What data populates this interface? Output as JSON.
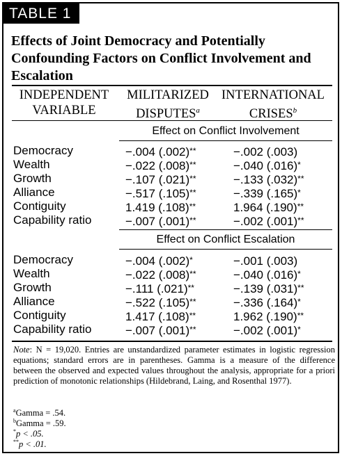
{
  "table_tag": "TABLE 1",
  "title": "Effects of Joint Democracy and Potentially Confounding Factors on Conflict Involvement and Escalation",
  "headers": {
    "col0_line1": "INDEPENDENT",
    "col0_line2": "VARIABLE",
    "col1_line1": "MILITARIZED",
    "col1_line2": "DISPUTES",
    "col1_mark": "a",
    "col2_line1": "INTERNATIONAL",
    "col2_line2": "CRISES",
    "col2_mark": "b"
  },
  "sections": [
    {
      "heading": "Effect on Conflict Involvement",
      "rows": [
        {
          "label": "Democracy",
          "disputes": "−.004 (.002)",
          "disputes_sig": "**",
          "crises": "−.002 (.003)",
          "crises_sig": ""
        },
        {
          "label": "Wealth",
          "disputes": "−.022 (.008)",
          "disputes_sig": "**",
          "crises": "−.040 (.016)",
          "crises_sig": "*"
        },
        {
          "label": "Growth",
          "disputes": "−.107 (.021)",
          "disputes_sig": "**",
          "crises": "−.133 (.032)",
          "crises_sig": "**"
        },
        {
          "label": "Alliance",
          "disputes": "−.517 (.105)",
          "disputes_sig": "**",
          "crises": "−.339 (.165)",
          "crises_sig": "*"
        },
        {
          "label": "Contiguity",
          "disputes": "1.419 (.108)",
          "disputes_sig": "**",
          "crises": "1.964 (.190)",
          "crises_sig": "**"
        },
        {
          "label": "Capability ratio",
          "disputes": "−.007 (.001)",
          "disputes_sig": "**",
          "crises": "−.002 (.001)",
          "crises_sig": "**"
        }
      ]
    },
    {
      "heading": "Effect on Conflict Escalation",
      "rows": [
        {
          "label": "Democracy",
          "disputes": "−.004 (.002)",
          "disputes_sig": "*",
          "crises": "−.001 (.003)",
          "crises_sig": ""
        },
        {
          "label": "Wealth",
          "disputes": "−.022 (.008)",
          "disputes_sig": "**",
          "crises": "−.040 (.016)",
          "crises_sig": "*"
        },
        {
          "label": "Growth",
          "disputes": "−.111 (.021)",
          "disputes_sig": "**",
          "crises": "−.139 (.031)",
          "crises_sig": "**"
        },
        {
          "label": "Alliance",
          "disputes": "−.522 (.105)",
          "disputes_sig": "**",
          "crises": "−.336 (.164)",
          "crises_sig": "*"
        },
        {
          "label": "Contiguity",
          "disputes": "1.417 (.108)",
          "disputes_sig": "**",
          "crises": "1.962 (.190)",
          "crises_sig": "**"
        },
        {
          "label": "Capability ratio",
          "disputes": "−.007 (.001)",
          "disputes_sig": "**",
          "crises": "−.002 (.001)",
          "crises_sig": "*"
        }
      ]
    }
  ],
  "note": {
    "label": "Note",
    "text": ": N = 19,020. Entries are unstandardized parameter estimates in logistic regression equations; standard errors are in parentheses. Gamma is a measure of the difference between the observed and expected values throughout the analysis, appropriate for a priori prediction of monotonic relationships (Hildebrand, Laing, and Rosenthal 1977)."
  },
  "footnotes": [
    {
      "mark": "a",
      "text": "Gamma = .54."
    },
    {
      "mark": "b",
      "text": "Gamma = .59."
    },
    {
      "mark": "*",
      "text": "p < .05."
    },
    {
      "mark": "**",
      "text": "p < .01."
    }
  ]
}
